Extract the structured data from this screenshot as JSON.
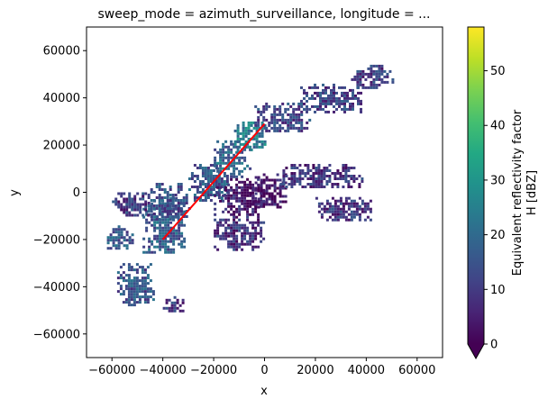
{
  "chart_data": {
    "type": "heatmap",
    "title": "sweep_mode = azimuth_surveillance, longitude = ...",
    "xlabel": "x",
    "ylabel": "y",
    "xlim": [
      -70000,
      70000
    ],
    "ylim": [
      -70000,
      70000
    ],
    "x_ticks": [
      -60000,
      -40000,
      -20000,
      0,
      20000,
      40000,
      60000
    ],
    "y_ticks": [
      -60000,
      -40000,
      -20000,
      0,
      20000,
      40000,
      60000
    ],
    "x_tick_labels": [
      "−60000",
      "−40000",
      "−20000",
      "0",
      "20000",
      "40000",
      "60000"
    ],
    "y_tick_labels": [
      "−60000",
      "−40000",
      "−20000",
      "0",
      "20000",
      "40000",
      "60000"
    ],
    "colorbar": {
      "label_line1": "Equivalent reflectivity factor",
      "label_line2": "H [dBZ]",
      "colormap": "viridis",
      "vmin": 0,
      "vmax": 58,
      "ticks": [
        0,
        10,
        20,
        30,
        40,
        50
      ],
      "extend": "min"
    },
    "grid": false,
    "overlay_line": {
      "color": "#ff0000",
      "points": [
        [
          -40000,
          -20000
        ],
        [
          0,
          29000
        ]
      ]
    },
    "echo_regions": [
      {
        "x": [
          -48000,
          -32000
        ],
        "y": [
          -26000,
          -2000
        ],
        "value": 17
      },
      {
        "x": [
          -46000,
          -30000
        ],
        "y": [
          -12000,
          4000
        ],
        "value": 14
      },
      {
        "x": [
          -30000,
          -15000
        ],
        "y": [
          -4000,
          12000
        ],
        "value": 16
      },
      {
        "x": [
          -20000,
          -6000
        ],
        "y": [
          6000,
          22000
        ],
        "value": 19
      },
      {
        "x": [
          -12000,
          0
        ],
        "y": [
          18000,
          30000
        ],
        "value": 24
      },
      {
        "x": [
          -4000,
          18000
        ],
        "y": [
          26000,
          38000
        ],
        "value": 12
      },
      {
        "x": [
          14000,
          38000
        ],
        "y": [
          34000,
          46000
        ],
        "value": 11
      },
      {
        "x": [
          34000,
          50000
        ],
        "y": [
          44000,
          54000
        ],
        "value": 10
      },
      {
        "x": [
          -58000,
          -44000
        ],
        "y": [
          -48000,
          -30000
        ],
        "value": 15
      },
      {
        "x": [
          -62000,
          -52000
        ],
        "y": [
          -24000,
          -14000
        ],
        "value": 16
      },
      {
        "x": [
          -40000,
          -32000
        ],
        "y": [
          -50000,
          -44000
        ],
        "value": 9
      },
      {
        "x": [
          -20000,
          0
        ],
        "y": [
          -10000,
          6000
        ],
        "value": 4
      },
      {
        "x": [
          -6000,
          8000
        ],
        "y": [
          -6000,
          8000
        ],
        "value": 3
      },
      {
        "x": [
          6000,
          40000
        ],
        "y": [
          2000,
          12000
        ],
        "value": 9
      },
      {
        "x": [
          20000,
          42000
        ],
        "y": [
          -12000,
          -2000
        ],
        "value": 9
      },
      {
        "x": [
          -20000,
          0
        ],
        "y": [
          -24000,
          -10000
        ],
        "value": 8
      },
      {
        "x": [
          -60000,
          -46000
        ],
        "y": [
          -10000,
          0
        ],
        "value": 10
      }
    ]
  }
}
